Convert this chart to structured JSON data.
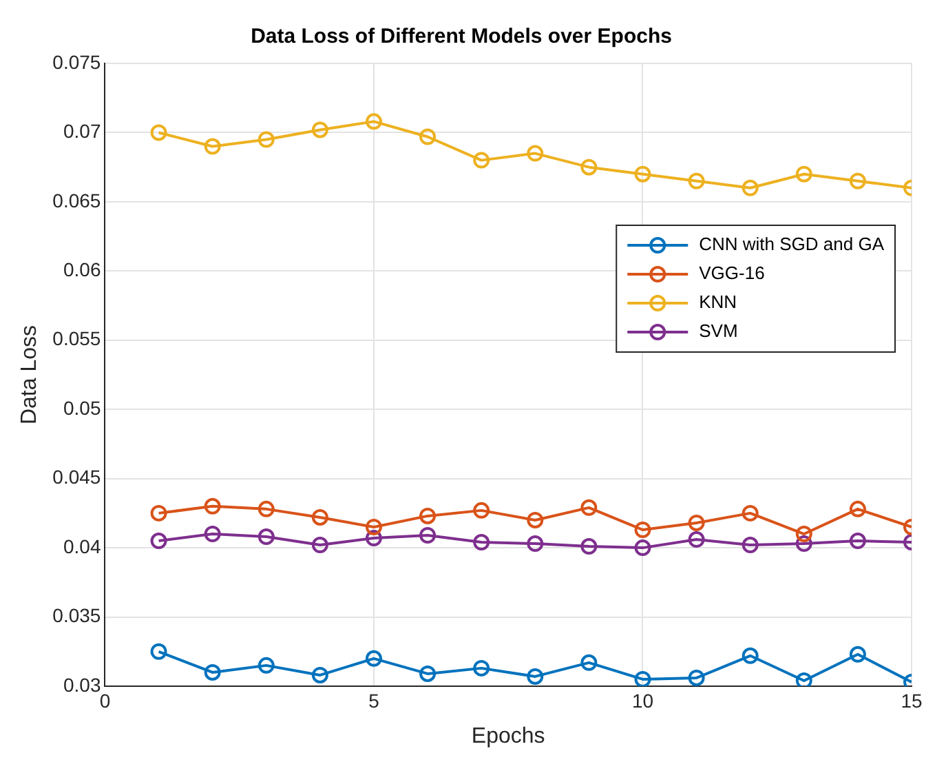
{
  "chart_data": {
    "type": "line",
    "title": "Data Loss of Different Models over Epochs",
    "xlabel": "Epochs",
    "ylabel": "Data Loss",
    "x": [
      1,
      2,
      3,
      4,
      5,
      6,
      7,
      8,
      9,
      10,
      11,
      12,
      13,
      14,
      15
    ],
    "series": [
      {
        "name": "CNN with SGD and GA",
        "color": "#0072bd",
        "values": [
          0.0325,
          0.031,
          0.0315,
          0.0308,
          0.032,
          0.0309,
          0.0313,
          0.0307,
          0.0317,
          0.0305,
          0.0306,
          0.0322,
          0.0304,
          0.0323,
          0.0303
        ]
      },
      {
        "name": "VGG-16",
        "color": "#d95319",
        "values": [
          0.0425,
          0.043,
          0.0428,
          0.0422,
          0.0415,
          0.0423,
          0.0427,
          0.042,
          0.0429,
          0.0413,
          0.0418,
          0.0425,
          0.041,
          0.0428,
          0.0415
        ]
      },
      {
        "name": "KNN",
        "color": "#edb120",
        "values": [
          0.07,
          0.069,
          0.0695,
          0.0702,
          0.0708,
          0.0697,
          0.068,
          0.0685,
          0.0675,
          0.067,
          0.0665,
          0.066,
          0.067,
          0.0665,
          0.066
        ]
      },
      {
        "name": "SVM",
        "color": "#7e2f8e",
        "values": [
          0.0405,
          0.041,
          0.0408,
          0.0402,
          0.0407,
          0.0409,
          0.0404,
          0.0403,
          0.0401,
          0.04,
          0.0406,
          0.0402,
          0.0403,
          0.0405,
          0.0404
        ]
      }
    ],
    "xlim": [
      0,
      15
    ],
    "xticks": [
      0,
      5,
      10,
      15
    ],
    "ylim": [
      0.03,
      0.075
    ],
    "yticks": [
      0.03,
      0.035,
      0.04,
      0.045,
      0.05,
      0.055,
      0.06,
      0.065,
      0.07,
      0.075
    ],
    "grid": true,
    "legend": "right",
    "marker": "circle",
    "line_style": "solid"
  }
}
